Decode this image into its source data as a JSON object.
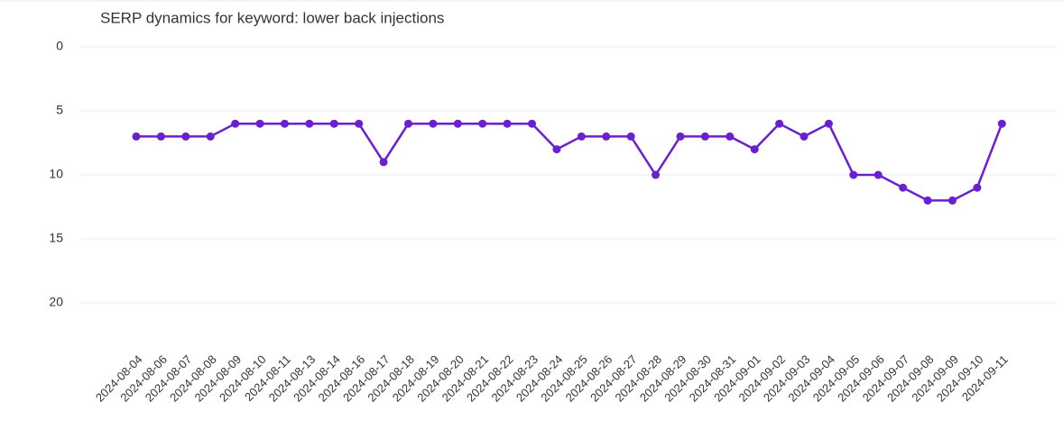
{
  "chart_data": {
    "type": "line",
    "title": "SERP dynamics for keyword: lower back injections",
    "categories": [
      "2024-08-04",
      "2024-08-06",
      "2024-08-07",
      "2024-08-08",
      "2024-08-09",
      "2024-08-10",
      "2024-08-11",
      "2024-08-13",
      "2024-08-14",
      "2024-08-16",
      "2024-08-17",
      "2024-08-18",
      "2024-08-19",
      "2024-08-20",
      "2024-08-21",
      "2024-08-22",
      "2024-08-23",
      "2024-08-24",
      "2024-08-25",
      "2024-08-26",
      "2024-08-27",
      "2024-08-28",
      "2024-08-29",
      "2024-08-30",
      "2024-08-31",
      "2024-09-01",
      "2024-09-02",
      "2024-09-03",
      "2024-09-04",
      "2024-09-05",
      "2024-09-06",
      "2024-09-07",
      "2024-09-08",
      "2024-09-09",
      "2024-09-10",
      "2024-09-11"
    ],
    "series": [
      {
        "color": "#6a1fd1",
        "values": [
          7,
          7,
          7,
          7,
          6,
          6,
          6,
          6,
          6,
          6,
          9,
          6,
          6,
          6,
          6,
          6,
          6,
          8,
          7,
          7,
          7,
          10,
          7,
          7,
          7,
          8,
          6,
          7,
          6,
          10,
          10,
          11,
          12,
          12,
          11,
          6
        ]
      }
    ],
    "ylim": [
      0,
      20
    ],
    "yticks": [
      0,
      5,
      10,
      15,
      20
    ],
    "y_reversed": true,
    "grid": true
  }
}
